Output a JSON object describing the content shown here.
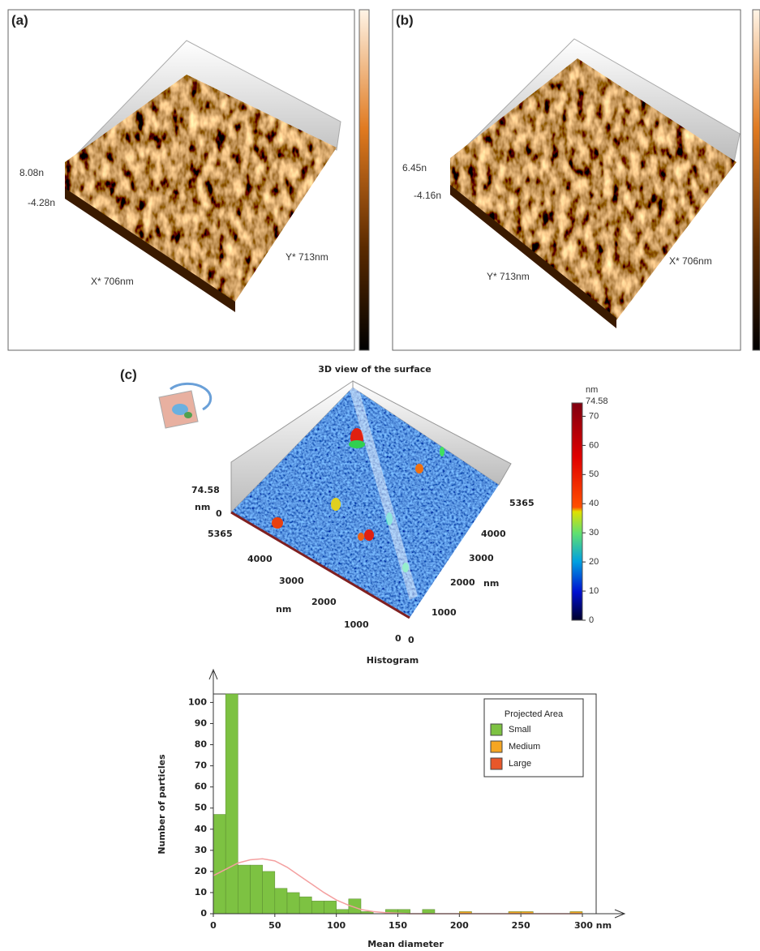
{
  "panels": {
    "a": {
      "label": "(a)",
      "z_max": "8.08n",
      "z_min": "-4.28n",
      "x_axis": "X* 706nm",
      "y_axis": "Y* 713nm"
    },
    "b": {
      "label": "(b)",
      "z_max": "6.45n",
      "z_min": "-4.16n",
      "x_axis": "Y* 713nm",
      "y_axis": "X* 706nm"
    },
    "c": {
      "label": "(c)",
      "title": "3D view of the surface",
      "z_max": 74.58,
      "z_unit": "nm",
      "z_min": 0,
      "left_axis": [
        5365,
        4000,
        3000,
        2000,
        1000,
        0
      ],
      "left_unit": "nm",
      "right_axis": [
        5365,
        4000,
        3000,
        2000,
        1000,
        0
      ],
      "right_unit": "nm",
      "colorbar": {
        "unit": "nm",
        "max": 74.58,
        "lim": [
          0,
          74.58
        ],
        "ticks": [
          0,
          10,
          20,
          30,
          40,
          50,
          60,
          70
        ]
      }
    }
  },
  "chart_data": {
    "type": "histogram",
    "title": "Histogram",
    "x_label": "Mean diameter",
    "y_label": "Number of particles",
    "bins": [
      0,
      10,
      20,
      30,
      40,
      50,
      60,
      70,
      80,
      90,
      100,
      110,
      120,
      130,
      140,
      150,
      160,
      170,
      180,
      190,
      200,
      210,
      220,
      230,
      240,
      250,
      260,
      270,
      280,
      290,
      300
    ],
    "series": [
      {
        "name": "Small",
        "color": "#7dc242",
        "values": [
          47,
          104,
          23,
          23,
          20,
          12,
          10,
          8,
          6,
          6,
          2,
          7,
          1,
          0,
          2,
          2,
          0,
          2,
          0,
          0,
          0,
          0,
          0,
          0,
          0,
          0,
          0,
          0,
          0,
          0
        ]
      },
      {
        "name": "Medium",
        "color": "#f5a623",
        "values": [
          0,
          0,
          0,
          0,
          0,
          0,
          0,
          0,
          0,
          0,
          0,
          0,
          0,
          0,
          0,
          0,
          0,
          0,
          0,
          0,
          1,
          0,
          0,
          0,
          1,
          1,
          0,
          0,
          0,
          1
        ]
      },
      {
        "name": "Large",
        "color": "#e8572a",
        "values": [
          0,
          0,
          0,
          0,
          0,
          0,
          0,
          0,
          0,
          0,
          0,
          0,
          0,
          0,
          0,
          0,
          0,
          0,
          0,
          0,
          0,
          0,
          0,
          0,
          0,
          0,
          0,
          0,
          0,
          0
        ]
      }
    ],
    "curve": {
      "color": "#f4a0a0",
      "x": [
        0,
        10,
        20,
        30,
        40,
        50,
        60,
        70,
        80,
        90,
        100,
        110,
        120,
        130,
        140,
        160,
        300
      ],
      "values": [
        18,
        21,
        24,
        25.5,
        26,
        25,
        22,
        18,
        14,
        10,
        6.5,
        4,
        2,
        1,
        0.5,
        0,
        0
      ]
    },
    "legend_title": "Projected Area",
    "xlim": [
      0,
      300
    ],
    "ylim": [
      0,
      104
    ],
    "xticks": [
      0,
      50,
      100,
      150,
      200,
      250,
      {
        "value": 300,
        "label": "300 nm"
      }
    ],
    "yticks": [
      0,
      10,
      20,
      30,
      40,
      50,
      60,
      70,
      80,
      90,
      100
    ]
  }
}
